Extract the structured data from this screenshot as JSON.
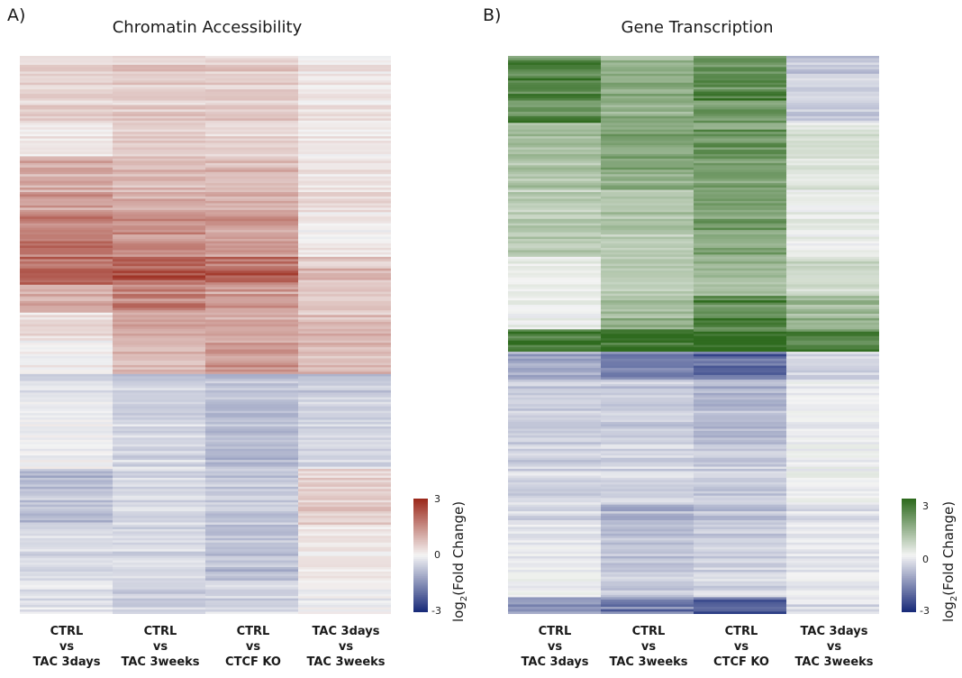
{
  "chart_data": [
    {
      "type": "heatmap",
      "panel_label": "A)",
      "title": "Chromatin Accessibility",
      "columns": [
        {
          "line1": "CTRL",
          "line2": "vs",
          "line3": "TAC 3days"
        },
        {
          "line1": "CTRL",
          "line2": "vs",
          "line3": "TAC 3weeks"
        },
        {
          "line1": "CTRL",
          "line2": "vs",
          "line3": "CTCF KO"
        },
        {
          "line1": "TAC 3days",
          "line2": "vs",
          "line3": "TAC 3weeks"
        }
      ],
      "colorbar": {
        "label_base": "log",
        "label_sub": "2",
        "label_rest": "(Fold Change)",
        "ticks": [
          "3",
          "0",
          "-3"
        ],
        "min": -3,
        "max": 3,
        "colors": {
          "low": "#1a2c7a",
          "mid": "#f4f4f4",
          "high": "#9c2a1c"
        }
      },
      "row_segments": [
        {
          "fraction": 0.12,
          "values": [
            0.5,
            0.6,
            0.6,
            0.2
          ]
        },
        {
          "fraction": 0.06,
          "values": [
            0.2,
            0.6,
            0.5,
            0.2
          ]
        },
        {
          "fraction": 0.1,
          "values": [
            1.2,
            1.0,
            0.9,
            0.3
          ]
        },
        {
          "fraction": 0.08,
          "values": [
            1.8,
            1.5,
            1.3,
            0.1
          ]
        },
        {
          "fraction": 0.05,
          "values": [
            2.0,
            2.4,
            2.1,
            0.8
          ]
        },
        {
          "fraction": 0.05,
          "values": [
            1.0,
            1.6,
            1.2,
            0.6
          ]
        },
        {
          "fraction": 0.05,
          "values": [
            0.3,
            1.0,
            1.0,
            0.8
          ]
        },
        {
          "fraction": 0.06,
          "values": [
            0.1,
            1.0,
            1.4,
            1.0
          ]
        },
        {
          "fraction": 0.05,
          "values": [
            -0.3,
            -0.6,
            -0.7,
            -0.6
          ]
        },
        {
          "fraction": 0.12,
          "values": [
            -0.1,
            -0.5,
            -0.9,
            -0.5
          ]
        },
        {
          "fraction": 0.1,
          "values": [
            -0.8,
            -0.4,
            -0.6,
            0.6
          ]
        },
        {
          "fraction": 0.1,
          "values": [
            -0.5,
            -0.5,
            -0.9,
            0.1
          ]
        },
        {
          "fraction": 0.06,
          "values": [
            -0.3,
            -0.6,
            -0.5,
            -0.1
          ]
        }
      ]
    },
    {
      "type": "heatmap",
      "panel_label": "B)",
      "title": "Gene Transcription",
      "columns": [
        {
          "line1": "CTRL",
          "line2": "vs",
          "line3": "TAC 3days"
        },
        {
          "line1": "CTRL",
          "line2": "vs",
          "line3": "TAC 3weeks"
        },
        {
          "line1": "CTRL",
          "line2": "vs",
          "line3": "CTCF KO"
        },
        {
          "line1": "TAC 3days",
          "line2": "vs",
          "line3": "TAC 3weeks"
        }
      ],
      "colorbar": {
        "label_base": "log",
        "label_sub": "2",
        "label_rest": "(Fold Change)",
        "ticks": [
          "3",
          "0",
          "-3"
        ],
        "min": -3,
        "max": 3,
        "colors": {
          "low": "#1a2c7a",
          "mid": "#f4f4f4",
          "high": "#2f6b1f"
        }
      },
      "row_segments": [
        {
          "fraction": 0.12,
          "values": [
            2.4,
            1.5,
            2.2,
            -0.6
          ]
        },
        {
          "fraction": 0.12,
          "values": [
            1.2,
            1.6,
            2.0,
            0.4
          ]
        },
        {
          "fraction": 0.12,
          "values": [
            0.9,
            1.0,
            1.8,
            0.1
          ]
        },
        {
          "fraction": 0.07,
          "values": [
            0.2,
            0.9,
            1.3,
            0.6
          ]
        },
        {
          "fraction": 0.06,
          "values": [
            0.1,
            1.3,
            2.4,
            1.3
          ]
        },
        {
          "fraction": 0.04,
          "values": [
            2.8,
            2.8,
            2.9,
            2.3
          ]
        },
        {
          "fraction": 0.05,
          "values": [
            -1.2,
            -1.8,
            -2.1,
            -0.5
          ]
        },
        {
          "fraction": 0.12,
          "values": [
            -0.6,
            -0.6,
            -0.9,
            -0.1
          ]
        },
        {
          "fraction": 0.1,
          "values": [
            -0.5,
            -0.5,
            -0.6,
            0.0
          ]
        },
        {
          "fraction": 0.08,
          "values": [
            -0.4,
            -0.9,
            -0.7,
            -0.3
          ]
        },
        {
          "fraction": 0.09,
          "values": [
            -0.1,
            -0.7,
            -0.5,
            -0.2
          ]
        },
        {
          "fraction": 0.03,
          "values": [
            -1.4,
            -1.8,
            -2.3,
            -0.4
          ]
        }
      ]
    }
  ]
}
